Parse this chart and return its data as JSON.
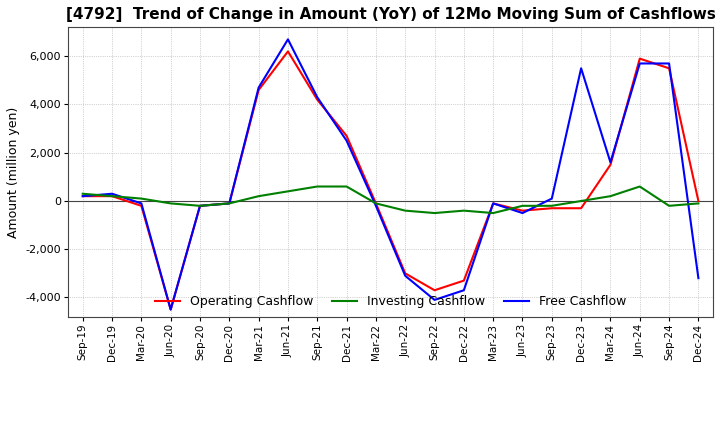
{
  "title": "[4792]  Trend of Change in Amount (YoY) of 12Mo Moving Sum of Cashflows",
  "ylabel": "Amount (million yen)",
  "ylim": [
    -4800,
    7200
  ],
  "yticks": [
    -4000,
    -2000,
    0,
    2000,
    4000,
    6000
  ],
  "background_color": "#ffffff",
  "grid_color": "#aaaaaa",
  "x_labels": [
    "Sep-19",
    "Dec-19",
    "Mar-20",
    "Jun-20",
    "Sep-20",
    "Dec-20",
    "Mar-21",
    "Jun-21",
    "Sep-21",
    "Dec-21",
    "Mar-22",
    "Jun-22",
    "Sep-22",
    "Dec-22",
    "Mar-23",
    "Jun-23",
    "Sep-23",
    "Dec-23",
    "Mar-24",
    "Jun-24",
    "Sep-24",
    "Dec-24"
  ],
  "operating_cashflow": [
    200,
    200,
    -200,
    -4500,
    -200,
    -100,
    4600,
    6200,
    4200,
    2700,
    -100,
    -3000,
    -3700,
    -3300,
    -100,
    -400,
    -300,
    -300,
    1500,
    5900,
    5500,
    0
  ],
  "investing_cashflow": [
    300,
    200,
    100,
    -100,
    -200,
    -100,
    200,
    400,
    600,
    600,
    -100,
    -400,
    -500,
    -400,
    -500,
    -200,
    -200,
    0,
    200,
    600,
    -200,
    -100
  ],
  "free_cashflow": [
    200,
    300,
    -100,
    -4500,
    -200,
    -100,
    4700,
    6700,
    4300,
    2500,
    -200,
    -3100,
    -4100,
    -3700,
    -100,
    -500,
    100,
    5500,
    1600,
    5700,
    5700,
    -3200
  ],
  "operating_color": "#ff0000",
  "investing_color": "#008000",
  "free_color": "#0000ff",
  "line_width": 1.5
}
